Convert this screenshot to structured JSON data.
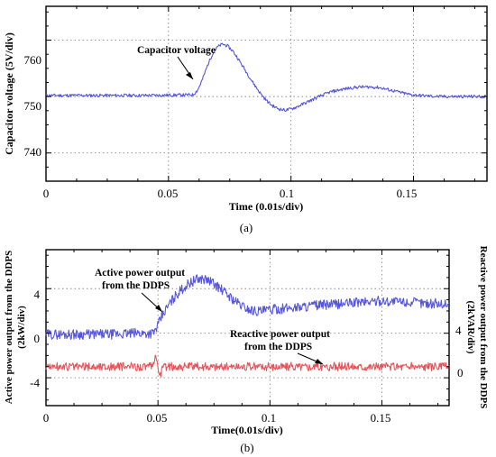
{
  "chart_data": [
    {
      "type": "line",
      "caption": "(a)",
      "xlabel": "Time (0.01s/div)",
      "ylabel": "Capacitor voltage (5V/div)",
      "xlim": [
        0,
        0.18
      ],
      "ylim": [
        735,
        766
      ],
      "x_ticks": [
        "0",
        "0.05",
        "0.1",
        "0.15"
      ],
      "y_ticks": [
        "740",
        "750",
        "760"
      ],
      "grid": true,
      "annotations": [
        {
          "text": "Capacitor voltage",
          "arrow_to": [
            0.068,
            754
          ]
        }
      ],
      "series": [
        {
          "color": "#5555dd",
          "x": [
            0,
            0.02,
            0.04,
            0.06,
            0.062,
            0.064,
            0.066,
            0.068,
            0.07,
            0.072,
            0.074,
            0.076,
            0.078,
            0.08,
            0.082,
            0.084,
            0.086,
            0.088,
            0.09,
            0.092,
            0.094,
            0.096,
            0.098,
            0.1,
            0.102,
            0.104,
            0.108,
            0.112,
            0.116,
            0.12,
            0.124,
            0.128,
            0.132,
            0.136,
            0.14,
            0.144,
            0.148,
            0.152,
            0.156,
            0.16,
            0.17,
            0.18
          ],
          "values": [
            750.2,
            750.2,
            750.2,
            750.3,
            751.2,
            753.2,
            755.6,
            757.6,
            758.8,
            759.3,
            759.0,
            758.2,
            757.0,
            755.6,
            754.2,
            752.8,
            751.5,
            750.3,
            749.3,
            748.5,
            748.0,
            747.7,
            747.6,
            747.8,
            748.1,
            748.5,
            749.3,
            750.1,
            750.8,
            751.2,
            751.5,
            751.7,
            751.7,
            751.6,
            751.2,
            750.8,
            750.4,
            750.2,
            750.1,
            750.0,
            750.0,
            750.0
          ]
        }
      ]
    },
    {
      "type": "line",
      "caption": "(b)",
      "xlabel": "Time(0.01s/div)",
      "ylabel": "Active power output from the DDPS (2kW/div)",
      "ylabel_right": "Reactive power output from the DDPS (2kVAR/div)",
      "xlim": [
        0,
        0.18
      ],
      "ylim": [
        -6.5,
        7.5
      ],
      "x_ticks": [
        "0",
        "0.05",
        "0.1",
        "0.15"
      ],
      "y_ticks": [
        "4",
        "0",
        "-4"
      ],
      "y_ticks_right": [
        "4",
        "0"
      ],
      "grid": true,
      "annotations": [
        {
          "text": "Active power output from the DDPS",
          "arrow_to": [
            0.052,
            1.5
          ]
        },
        {
          "text": "Reactive power output from the DDPS",
          "arrow_to": [
            0.125,
            -2.4
          ]
        }
      ],
      "series": [
        {
          "color": "#5555dd",
          "x": [
            0,
            0.01,
            0.02,
            0.03,
            0.04,
            0.048,
            0.05,
            0.052,
            0.055,
            0.058,
            0.061,
            0.064,
            0.067,
            0.07,
            0.073,
            0.076,
            0.079,
            0.082,
            0.085,
            0.088,
            0.091,
            0.094,
            0.097,
            0.1,
            0.105,
            0.11,
            0.12,
            0.13,
            0.14,
            0.15,
            0.16,
            0.17,
            0.18
          ],
          "values": [
            -0.1,
            -0.1,
            -0.1,
            -0.1,
            0.0,
            0.0,
            0.7,
            1.6,
            2.6,
            3.4,
            4.0,
            4.5,
            4.8,
            4.9,
            4.7,
            4.3,
            3.8,
            3.3,
            2.8,
            2.4,
            2.1,
            2.0,
            2.0,
            2.1,
            2.2,
            2.3,
            2.5,
            2.6,
            2.8,
            2.9,
            2.8,
            2.7,
            2.6
          ]
        },
        {
          "color": "#e8535a",
          "x": [
            0,
            0.02,
            0.04,
            0.048,
            0.049,
            0.05,
            0.051,
            0.052,
            0.06,
            0.08,
            0.1,
            0.12,
            0.14,
            0.16,
            0.18
          ],
          "values": [
            -3.0,
            -3.0,
            -3.0,
            -3.0,
            -1.8,
            -3.0,
            -3.9,
            -3.0,
            -3.0,
            -3.0,
            -3.0,
            -3.0,
            -3.0,
            -3.0,
            -3.0
          ]
        }
      ]
    }
  ]
}
